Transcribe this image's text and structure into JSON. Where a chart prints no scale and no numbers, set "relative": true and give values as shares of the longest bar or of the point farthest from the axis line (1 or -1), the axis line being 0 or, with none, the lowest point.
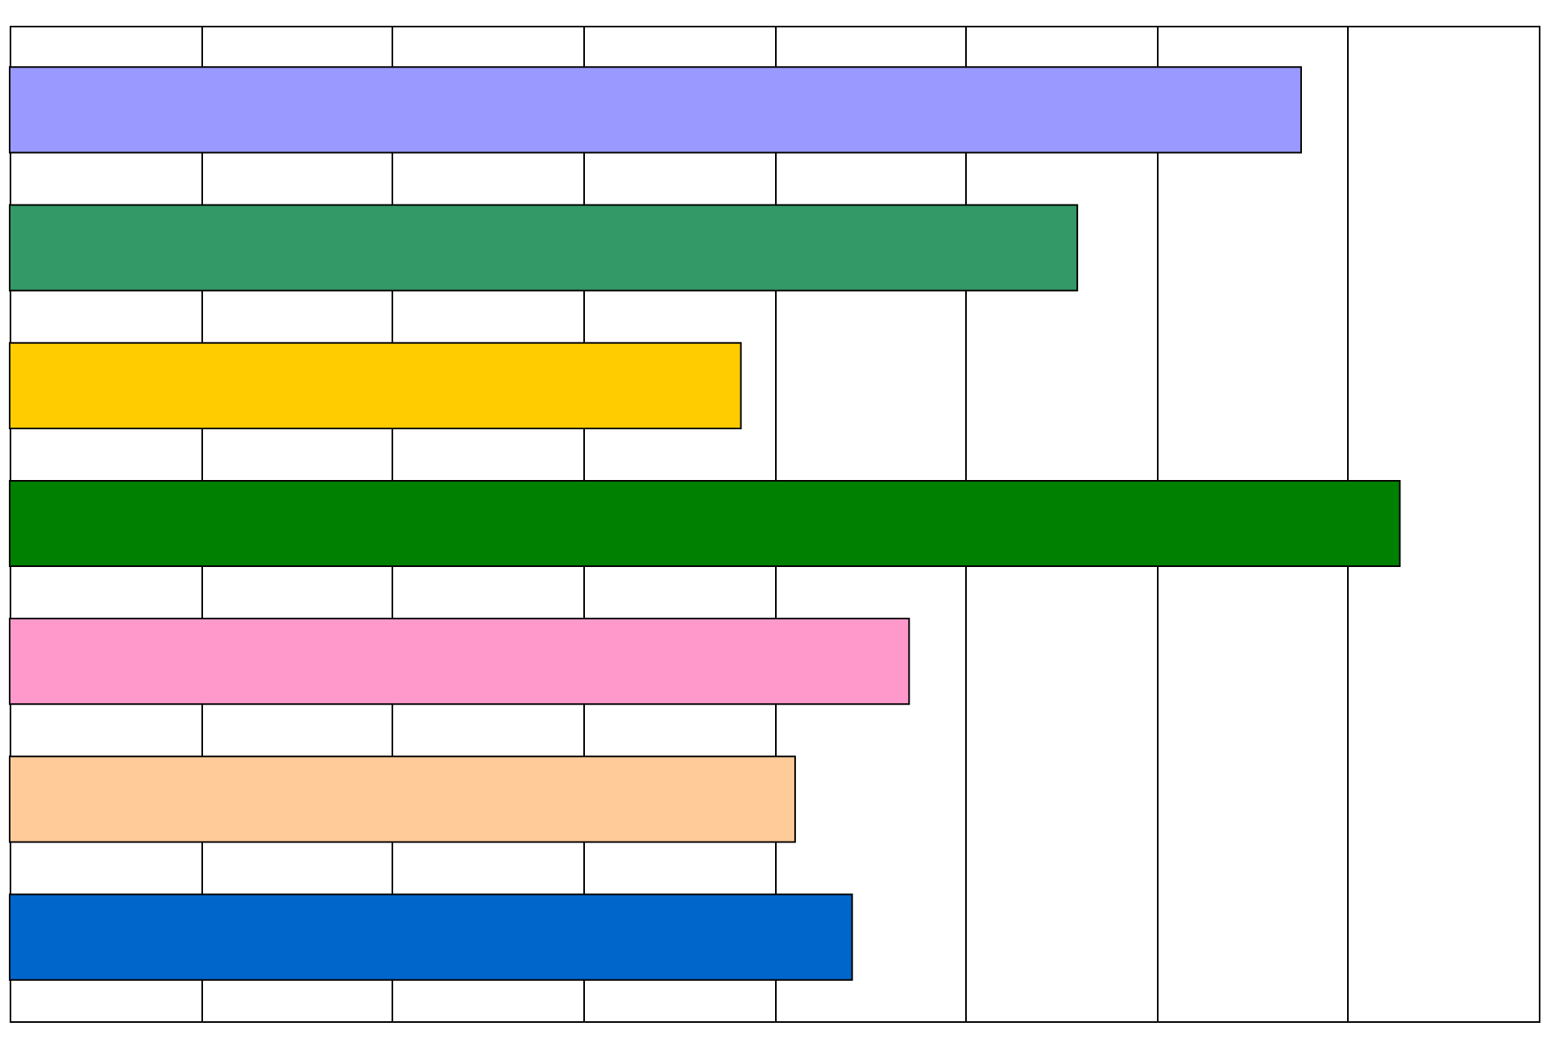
{
  "chart_data": {
    "type": "bar",
    "orientation": "horizontal",
    "relative": true,
    "categories": [
      null,
      null,
      null,
      null,
      null,
      null,
      null
    ],
    "values": [
      0.929,
      0.768,
      0.526,
      1,
      0.647,
      0.565,
      0.606
    ],
    "colors": [
      "#9999ff",
      "#339966",
      "#ffcc00",
      "#008000",
      "#ff99cc",
      "#ffcc99",
      "#0066cc"
    ],
    "grid": "x",
    "tick_labels": false
  }
}
